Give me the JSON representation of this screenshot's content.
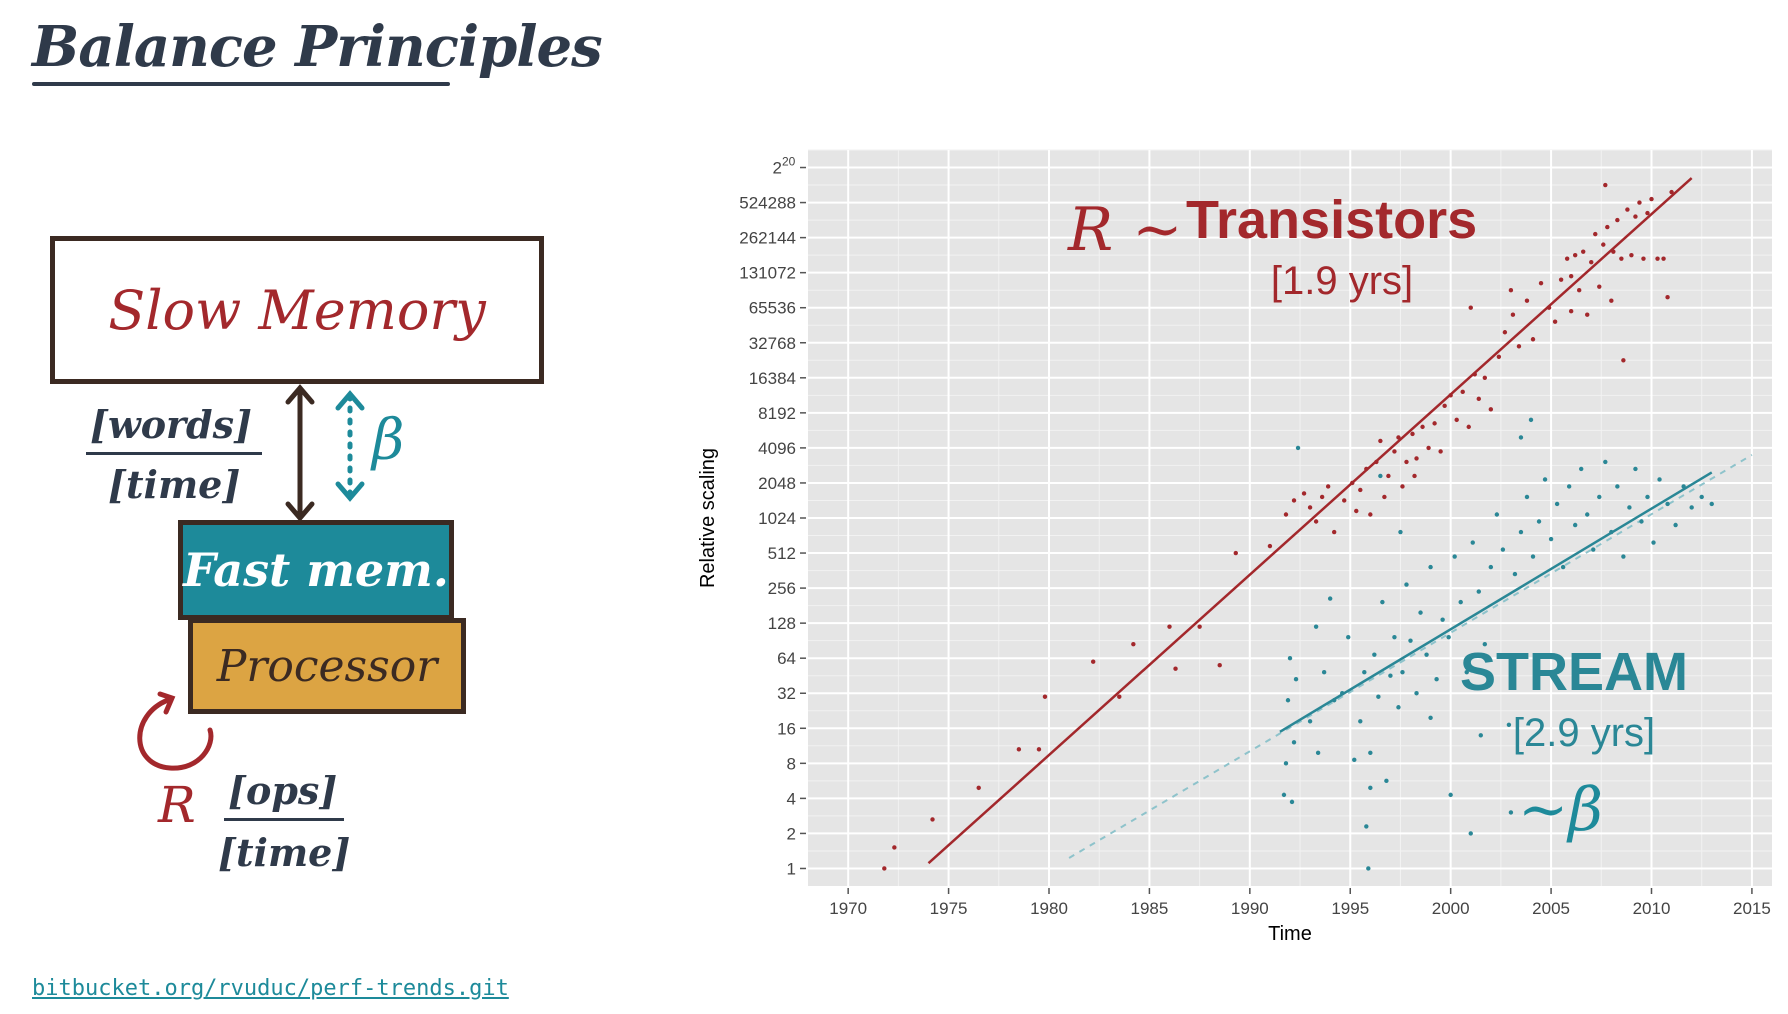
{
  "page": {
    "title": "Balance Principles",
    "repo_link": "bitbucket.org/rvuduc/perf-trends.git"
  },
  "diagram": {
    "slow_memory": "Slow Memory",
    "fast_mem": "Fast mem.",
    "processor": "Processor",
    "words_numerator": "[words]",
    "words_denominator": "[time]",
    "beta": "β",
    "r": "R",
    "ops_numerator": "[ops]",
    "ops_denominator": "[time]",
    "colors": {
      "ink": "#3b2a22",
      "teal": "#1d8a9a",
      "red": "#a3282c",
      "gold": "#dca443"
    }
  },
  "chart_data": {
    "type": "scatter",
    "xlabel": "Time",
    "ylabel": "Relative scaling",
    "xlim": [
      1968,
      2016
    ],
    "x_ticks": [
      1970,
      1975,
      1980,
      1985,
      1990,
      1995,
      2000,
      2005,
      2010,
      2015
    ],
    "y_scale": "log2",
    "ylim_log2": [
      -0.5,
      20.5
    ],
    "y_ticks": [
      {
        "log2": 0,
        "label": "1"
      },
      {
        "log2": 1,
        "label": "2"
      },
      {
        "log2": 2,
        "label": "4"
      },
      {
        "log2": 3,
        "label": "8"
      },
      {
        "log2": 4,
        "label": "16"
      },
      {
        "log2": 5,
        "label": "32"
      },
      {
        "log2": 6,
        "label": "64"
      },
      {
        "log2": 7,
        "label": "128"
      },
      {
        "log2": 8,
        "label": "256"
      },
      {
        "log2": 9,
        "label": "512"
      },
      {
        "log2": 10,
        "label": "1024"
      },
      {
        "log2": 11,
        "label": "2048"
      },
      {
        "log2": 12,
        "label": "4096"
      },
      {
        "log2": 13,
        "label": "8192"
      },
      {
        "log2": 14,
        "label": "16384"
      },
      {
        "log2": 15,
        "label": "32768"
      },
      {
        "log2": 16,
        "label": "65536"
      },
      {
        "log2": 17,
        "label": "131072"
      },
      {
        "log2": 18,
        "label": "262144"
      },
      {
        "log2": 19,
        "label": "524288"
      },
      {
        "log2": 20,
        "label": "2",
        "sup": "20"
      }
    ],
    "grid": true,
    "background": "#e5e5e5",
    "series": [
      {
        "name": "Transistors",
        "color": "#a3282c",
        "fit": {
          "x": [
            1974,
            2012
          ],
          "log2_y": [
            0.15,
            19.7
          ]
        },
        "points": [
          [
            1971.8,
            0.0
          ],
          [
            1972.3,
            0.6
          ],
          [
            1974.2,
            1.4
          ],
          [
            1976.5,
            2.3
          ],
          [
            1978.5,
            3.4
          ],
          [
            1979.5,
            3.4
          ],
          [
            1979.8,
            4.9
          ],
          [
            1982.2,
            5.9
          ],
          [
            1983.5,
            4.9
          ],
          [
            1984.2,
            6.4
          ],
          [
            1986.0,
            6.9
          ],
          [
            1986.3,
            5.7
          ],
          [
            1987.5,
            6.9
          ],
          [
            1988.5,
            5.8
          ],
          [
            1989.3,
            9.0
          ],
          [
            1991.0,
            9.2
          ],
          [
            1991.8,
            10.1
          ],
          [
            1992.2,
            10.5
          ],
          [
            1992.7,
            10.7
          ],
          [
            1993.0,
            10.3
          ],
          [
            1993.3,
            9.9
          ],
          [
            1993.6,
            10.6
          ],
          [
            1993.9,
            10.9
          ],
          [
            1994.2,
            9.6
          ],
          [
            1994.7,
            10.5
          ],
          [
            1995.1,
            11.0
          ],
          [
            1995.3,
            10.2
          ],
          [
            1995.5,
            10.8
          ],
          [
            1995.8,
            11.4
          ],
          [
            1996.0,
            10.1
          ],
          [
            1996.3,
            11.6
          ],
          [
            1996.5,
            12.2
          ],
          [
            1996.7,
            10.6
          ],
          [
            1996.9,
            11.2
          ],
          [
            1997.2,
            11.9
          ],
          [
            1997.4,
            12.3
          ],
          [
            1997.6,
            10.9
          ],
          [
            1997.8,
            11.6
          ],
          [
            1998.1,
            12.4
          ],
          [
            1998.3,
            11.7
          ],
          [
            1998.6,
            12.6
          ],
          [
            1998.9,
            12.0
          ],
          [
            1999.2,
            12.7
          ],
          [
            1999.5,
            11.9
          ],
          [
            1999.7,
            13.2
          ],
          [
            2000.0,
            13.5
          ],
          [
            2000.3,
            12.8
          ],
          [
            2000.6,
            13.6
          ],
          [
            2000.9,
            12.6
          ],
          [
            2001.2,
            14.1
          ],
          [
            2001.4,
            13.4
          ],
          [
            2001.7,
            14.0
          ],
          [
            2002.0,
            13.1
          ],
          [
            2002.4,
            14.6
          ],
          [
            2002.7,
            15.3
          ],
          [
            2003.1,
            15.8
          ],
          [
            2003.4,
            14.9
          ],
          [
            2003.8,
            16.2
          ],
          [
            2004.1,
            15.1
          ],
          [
            2004.5,
            16.7
          ],
          [
            2004.9,
            16.0
          ],
          [
            2005.2,
            15.6
          ],
          [
            2005.5,
            16.8
          ],
          [
            2005.8,
            17.4
          ],
          [
            2006.0,
            16.9
          ],
          [
            2006.2,
            17.5
          ],
          [
            2006.4,
            16.5
          ],
          [
            2006.6,
            17.6
          ],
          [
            2006.8,
            15.8
          ],
          [
            2007.0,
            17.3
          ],
          [
            2007.2,
            18.1
          ],
          [
            2007.4,
            16.6
          ],
          [
            2007.6,
            17.8
          ],
          [
            2007.8,
            18.3
          ],
          [
            2008.0,
            16.2
          ],
          [
            2008.1,
            17.6
          ],
          [
            2008.3,
            18.5
          ],
          [
            2008.5,
            17.4
          ],
          [
            2008.6,
            14.5
          ],
          [
            2008.8,
            18.8
          ],
          [
            2009.0,
            17.5
          ],
          [
            2009.2,
            18.6
          ],
          [
            2009.4,
            19.0
          ],
          [
            2009.6,
            17.4
          ],
          [
            2009.8,
            18.7
          ],
          [
            2010.0,
            19.1
          ],
          [
            2010.3,
            17.4
          ],
          [
            2010.6,
            17.4
          ],
          [
            2010.8,
            16.3
          ],
          [
            2011.0,
            19.3
          ],
          [
            2007.7,
            19.5
          ],
          [
            2006.0,
            15.9
          ],
          [
            2003.0,
            16.5
          ],
          [
            2001.0,
            16.0
          ],
          [
            1998.2,
            11.2
          ]
        ]
      },
      {
        "name": "STREAM",
        "color": "#2a8796",
        "fit": {
          "x": [
            1991.5,
            2013
          ],
          "log2_y": [
            3.9,
            11.3
          ]
        },
        "fit_dashed": {
          "x": [
            1981,
            2015
          ],
          "log2_y": [
            0.3,
            11.8
          ]
        },
        "points": [
          [
            1991.7,
            2.1
          ],
          [
            1991.8,
            3.0
          ],
          [
            1991.9,
            4.8
          ],
          [
            1992.0,
            6.0
          ],
          [
            1992.1,
            1.9
          ],
          [
            1992.2,
            3.6
          ],
          [
            1992.3,
            5.4
          ],
          [
            1992.4,
            12.0
          ],
          [
            1993.0,
            4.2
          ],
          [
            1993.4,
            3.3
          ],
          [
            1993.7,
            5.6
          ],
          [
            1994.2,
            4.8
          ],
          [
            1994.6,
            5.0
          ],
          [
            1994.9,
            6.6
          ],
          [
            1995.2,
            3.1
          ],
          [
            1995.5,
            4.2
          ],
          [
            1995.7,
            5.6
          ],
          [
            1995.9,
            0.0
          ],
          [
            1996.0,
            3.3
          ],
          [
            1996.2,
            6.1
          ],
          [
            1996.4,
            4.9
          ],
          [
            1996.6,
            7.6
          ],
          [
            1996.8,
            2.5
          ],
          [
            1997.0,
            5.5
          ],
          [
            1997.2,
            6.6
          ],
          [
            1997.4,
            4.6
          ],
          [
            1997.6,
            5.6
          ],
          [
            1997.8,
            8.1
          ],
          [
            1998.0,
            6.5
          ],
          [
            1998.3,
            5.0
          ],
          [
            1998.5,
            7.3
          ],
          [
            1998.8,
            6.1
          ],
          [
            1999.0,
            8.6
          ],
          [
            1999.3,
            5.4
          ],
          [
            1999.6,
            7.1
          ],
          [
            1999.9,
            6.6
          ],
          [
            2000.2,
            8.9
          ],
          [
            2000.5,
            7.6
          ],
          [
            2000.8,
            5.6
          ],
          [
            2001.1,
            9.3
          ],
          [
            2001.4,
            7.9
          ],
          [
            2001.7,
            6.4
          ],
          [
            2002.0,
            8.6
          ],
          [
            2002.3,
            10.1
          ],
          [
            2002.6,
            9.1
          ],
          [
            2002.9,
            4.1
          ],
          [
            2003.2,
            8.4
          ],
          [
            2003.5,
            9.6
          ],
          [
            2003.8,
            10.6
          ],
          [
            2004.1,
            8.9
          ],
          [
            2004.4,
            9.9
          ],
          [
            2004.7,
            11.1
          ],
          [
            2005.0,
            9.4
          ],
          [
            2005.3,
            10.4
          ],
          [
            2005.6,
            8.6
          ],
          [
            2005.9,
            10.9
          ],
          [
            2006.2,
            9.8
          ],
          [
            2006.5,
            11.4
          ],
          [
            2006.8,
            10.1
          ],
          [
            2007.1,
            9.1
          ],
          [
            2007.4,
            10.6
          ],
          [
            2007.7,
            11.6
          ],
          [
            2008.0,
            9.6
          ],
          [
            2008.3,
            10.9
          ],
          [
            2008.6,
            8.9
          ],
          [
            2008.9,
            10.3
          ],
          [
            2009.2,
            11.4
          ],
          [
            2009.5,
            9.9
          ],
          [
            2009.8,
            10.6
          ],
          [
            2010.1,
            9.3
          ],
          [
            2010.4,
            11.1
          ],
          [
            2010.8,
            10.4
          ],
          [
            2011.2,
            9.8
          ],
          [
            2011.6,
            10.9
          ],
          [
            2012.0,
            10.3
          ],
          [
            2012.5,
            10.6
          ],
          [
            2013.0,
            10.4
          ],
          [
            2001.0,
            1.0
          ],
          [
            2003.0,
            1.6
          ],
          [
            2000.0,
            2.1
          ],
          [
            1995.8,
            1.2
          ],
          [
            1993.3,
            6.9
          ],
          [
            1994.0,
            7.7
          ],
          [
            1997.5,
            9.6
          ],
          [
            2003.5,
            12.3
          ],
          [
            2004.0,
            12.8
          ],
          [
            1996.5,
            11.2
          ],
          [
            1999.0,
            4.3
          ],
          [
            2001.5,
            3.8
          ],
          [
            1996.0,
            2.3
          ]
        ]
      }
    ],
    "annotations": {
      "transistors_prefix": "R ~",
      "transistors_title": "Transistors",
      "transistors_rate": "[1.9 yrs]",
      "stream_title": "STREAM",
      "stream_rate": "[2.9 yrs]",
      "stream_suffix": "~β"
    }
  }
}
